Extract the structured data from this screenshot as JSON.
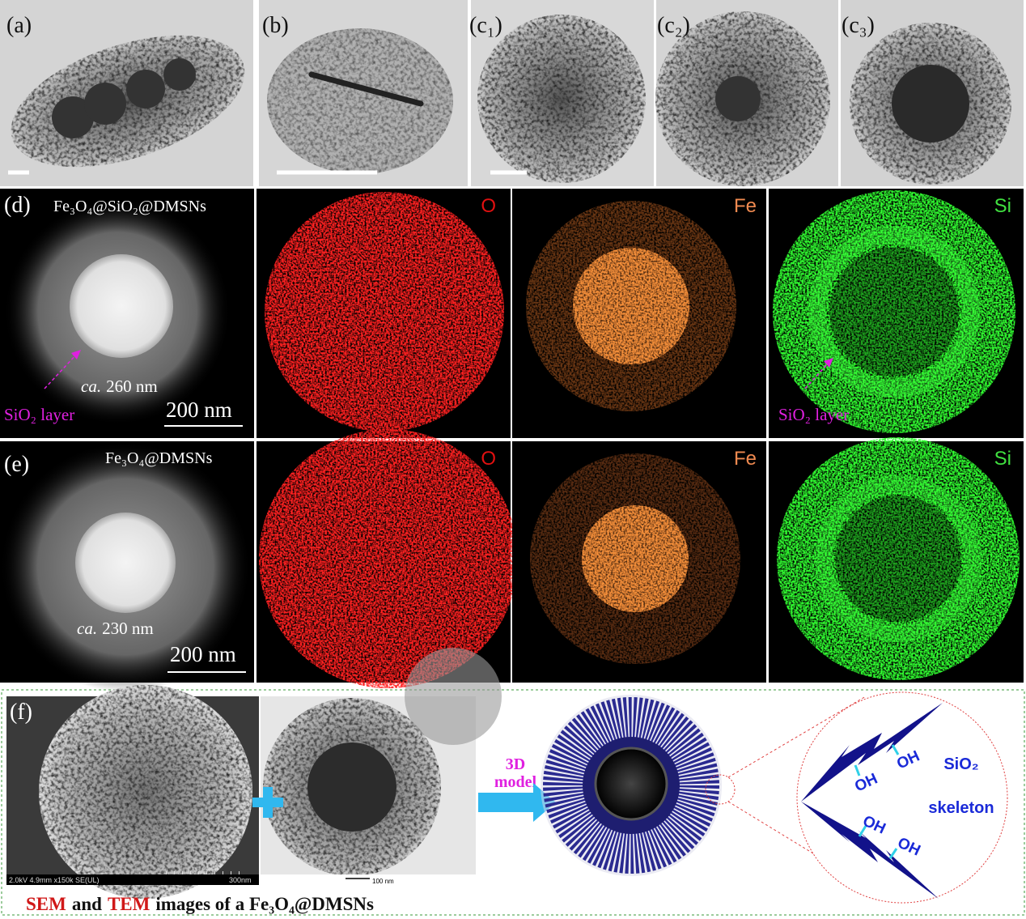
{
  "top_row": {
    "a": {
      "label": "(a)"
    },
    "b": {
      "label": "(b)"
    },
    "c1": {
      "label": "(c₁)"
    },
    "c2": {
      "label": "(c₂)"
    },
    "c3": {
      "label": "(c₃)"
    }
  },
  "row_d": {
    "label": "(d)",
    "title": "Fe₃O₄@SiO₂@DMSNs",
    "size_prefix": "ca.",
    "size": "260 nm",
    "annotation": "SiO₂ layer",
    "scale_bar": "200 nm",
    "maps": [
      "O",
      "Fe",
      "Si"
    ],
    "map_annotation": "SiO₂ layer"
  },
  "row_e": {
    "label": "(e)",
    "title": "Fe₃O₄@DMSNs",
    "size_prefix": "ca.",
    "size": "230 nm",
    "scale_bar": "200 nm",
    "maps": [
      "O",
      "Fe",
      "Si"
    ]
  },
  "panel_f": {
    "label": "(f)",
    "sem_info": "2.0kV 4.9mm x150k SE(UL)",
    "sem_scale": "300nm",
    "tem_scale": "100 nm",
    "arrow_label": [
      "3D",
      "model"
    ],
    "oh_labels": [
      "OH",
      "OH",
      "OH",
      "OH"
    ],
    "skeleton_label": [
      "SiO₂",
      "skeleton"
    ],
    "caption": [
      "SEM",
      "and",
      "TEM",
      "images of a Fe₃O₄@DMSNs"
    ]
  }
}
